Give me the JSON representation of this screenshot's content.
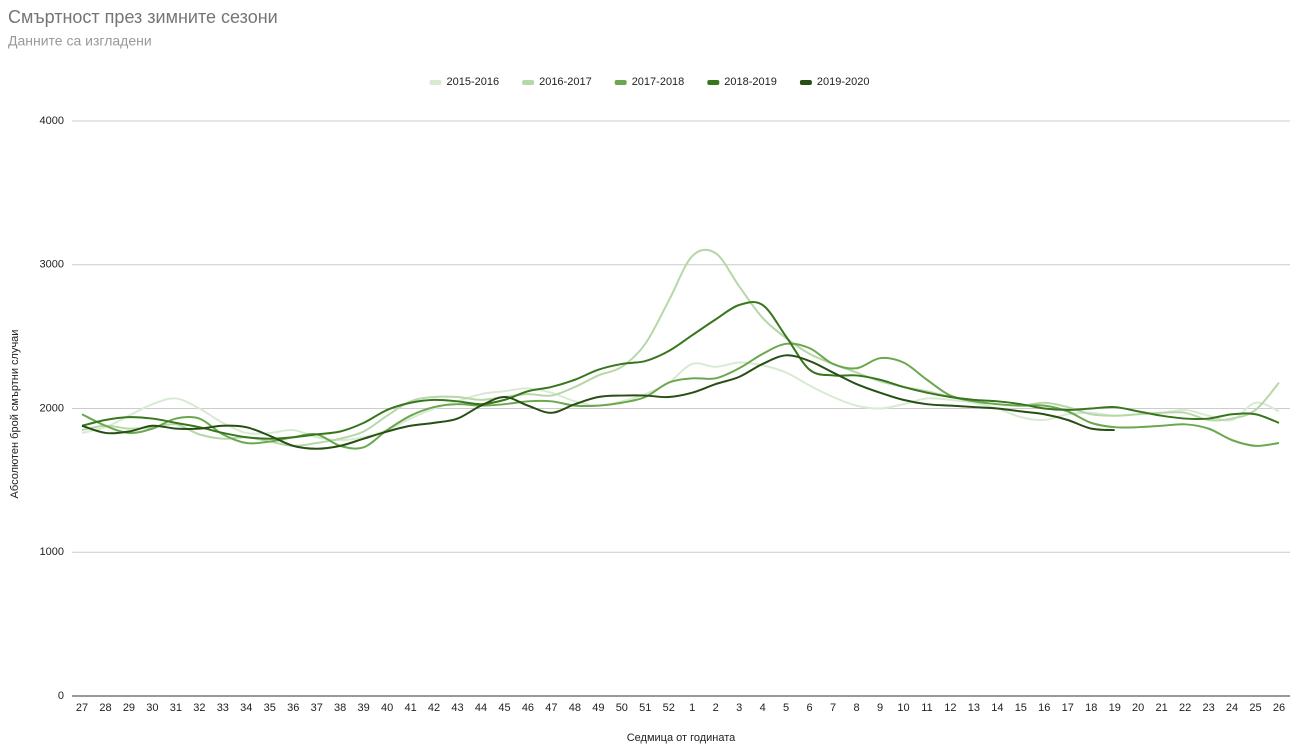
{
  "chart_data": {
    "type": "line",
    "title": "Смъртност през зимните сезони",
    "subtitle": "Данните са изгладени",
    "x_label": "Седмица от годината",
    "y_label": "Абсолютен брой смъртни случаи",
    "categories": [
      "27",
      "28",
      "29",
      "30",
      "31",
      "32",
      "33",
      "34",
      "35",
      "36",
      "37",
      "38",
      "39",
      "40",
      "41",
      "42",
      "43",
      "44",
      "45",
      "46",
      "47",
      "48",
      "49",
      "50",
      "51",
      "52",
      "1",
      "2",
      "3",
      "4",
      "5",
      "6",
      "7",
      "8",
      "9",
      "10",
      "11",
      "12",
      "13",
      "14",
      "15",
      "16",
      "17",
      "18",
      "19",
      "20",
      "21",
      "22",
      "23",
      "24",
      "25",
      "26"
    ],
    "ylim": [
      0,
      4000
    ],
    "yticks": [
      0,
      1000,
      2000,
      3000,
      4000
    ],
    "grid": true,
    "legend": "top",
    "smooth": true,
    "series": [
      {
        "name": "2015-2016",
        "color": "#d9ead3",
        "values": [
          1830,
          1870,
          1950,
          2030,
          2070,
          2000,
          1900,
          1830,
          1830,
          1850,
          1800,
          1780,
          1800,
          1850,
          1930,
          2000,
          2050,
          2100,
          2120,
          2140,
          2110,
          2050,
          2020,
          2050,
          2100,
          2180,
          2310,
          2290,
          2320,
          2300,
          2250,
          2160,
          2080,
          2020,
          2000,
          2030,
          2070,
          2060,
          2040,
          2000,
          1940,
          1920,
          1960,
          1970,
          1950,
          1960,
          1970,
          1990,
          1950,
          1920,
          2040,
          1980
        ]
      },
      {
        "name": "2016-2017",
        "color": "#b6d7a8",
        "values": [
          1850,
          1880,
          1860,
          1870,
          1890,
          1820,
          1790,
          1800,
          1770,
          1740,
          1760,
          1790,
          1840,
          1950,
          2050,
          2080,
          2080,
          2060,
          2080,
          2100,
          2090,
          2150,
          2230,
          2290,
          2450,
          2750,
          3060,
          3080,
          2850,
          2630,
          2490,
          2380,
          2310,
          2250,
          2190,
          2150,
          2120,
          2080,
          2050,
          2030,
          2020,
          2040,
          2010,
          1960,
          1950,
          1960,
          1970,
          1970,
          1920,
          1930,
          1990,
          2180
        ]
      },
      {
        "name": "2017-2018",
        "color": "#6aa84f",
        "values": [
          1960,
          1880,
          1830,
          1860,
          1930,
          1930,
          1820,
          1760,
          1770,
          1800,
          1820,
          1740,
          1730,
          1850,
          1950,
          2010,
          2030,
          2020,
          2030,
          2050,
          2050,
          2020,
          2020,
          2040,
          2080,
          2180,
          2210,
          2210,
          2280,
          2380,
          2450,
          2420,
          2310,
          2280,
          2350,
          2320,
          2200,
          2090,
          2050,
          2030,
          2020,
          2020,
          1980,
          1900,
          1870,
          1870,
          1880,
          1890,
          1860,
          1780,
          1740,
          1760
        ]
      },
      {
        "name": "2018-2019",
        "color": "#38761d",
        "values": [
          1880,
          1920,
          1940,
          1930,
          1900,
          1870,
          1830,
          1800,
          1790,
          1800,
          1820,
          1840,
          1900,
          1990,
          2040,
          2060,
          2050,
          2030,
          2060,
          2120,
          2150,
          2200,
          2270,
          2310,
          2330,
          2400,
          2510,
          2620,
          2720,
          2720,
          2500,
          2270,
          2230,
          2230,
          2200,
          2150,
          2110,
          2080,
          2060,
          2050,
          2030,
          2000,
          1990,
          2000,
          2010,
          1980,
          1950,
          1930,
          1930,
          1960,
          1960,
          1900
        ]
      },
      {
        "name": "2019-2020",
        "color": "#274e13",
        "values": [
          1880,
          1830,
          1840,
          1880,
          1860,
          1860,
          1880,
          1870,
          1810,
          1740,
          1720,
          1740,
          1790,
          1840,
          1880,
          1900,
          1930,
          2020,
          2080,
          2020,
          1970,
          2030,
          2080,
          2090,
          2090,
          2080,
          2110,
          2170,
          2220,
          2310,
          2370,
          2330,
          2250,
          2170,
          2110,
          2060,
          2030,
          2020,
          2010,
          2000,
          1980,
          1960,
          1920,
          1860,
          1850,
          null,
          null,
          null,
          null,
          null,
          null,
          null
        ]
      }
    ]
  }
}
